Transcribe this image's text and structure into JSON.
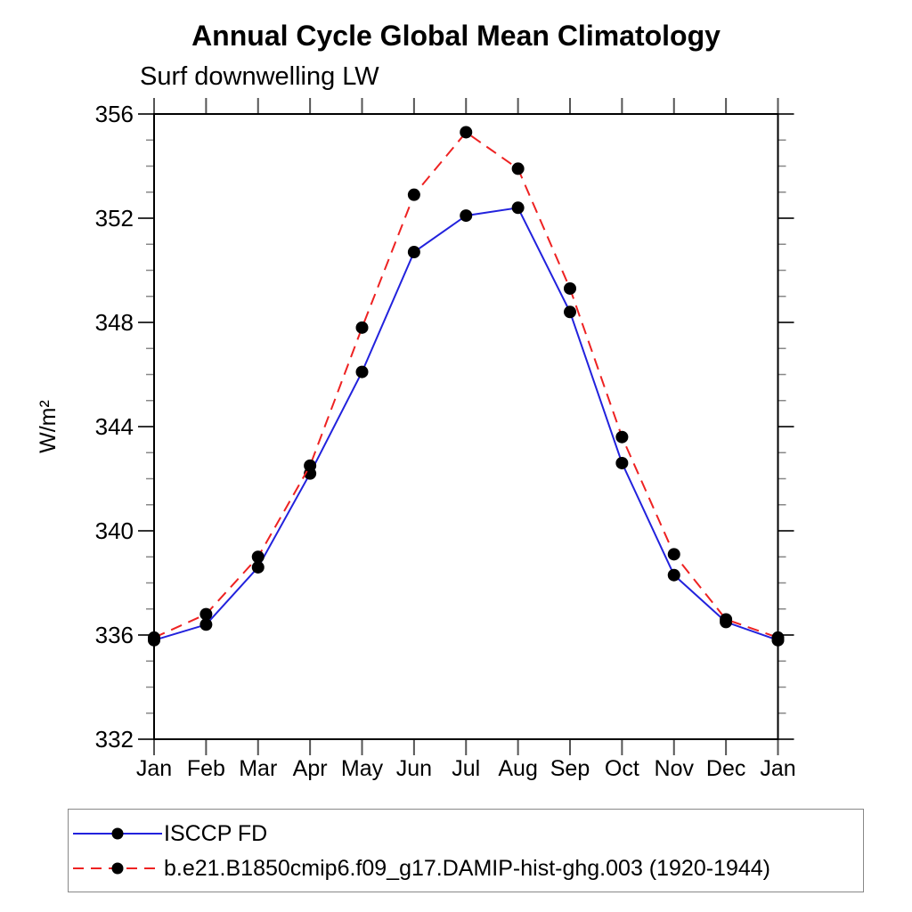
{
  "title": "Annual Cycle Global Mean Climatology",
  "chart_data": {
    "type": "line",
    "title": "Annual Cycle Global Mean Climatology",
    "subtitle": "Surf downwelling LW",
    "ylabel": "W/m²",
    "xlabel": "",
    "x_categories": [
      "Jan",
      "Feb",
      "Mar",
      "Apr",
      "May",
      "Jun",
      "Jul",
      "Aug",
      "Sep",
      "Oct",
      "Nov",
      "Dec",
      "Jan"
    ],
    "y_axis": {
      "min": 332,
      "max": 356,
      "major_step": 4,
      "minor_step": 1,
      "major_tick_labels": [
        "332",
        "336",
        "340",
        "344",
        "348",
        "352",
        "356"
      ]
    },
    "grid": "off",
    "legend_position": "bottom-left-box",
    "series": [
      {
        "name": "ISCCP FD",
        "line_style": "solid",
        "line_color": "#2222dd",
        "marker": "filled-circle",
        "marker_color": "#000000",
        "values": [
          335.8,
          336.4,
          338.6,
          342.2,
          346.1,
          350.7,
          352.1,
          352.4,
          348.4,
          342.6,
          338.3,
          336.5,
          335.8
        ]
      },
      {
        "name": "b.e21.B1850cmip6.f09_g17.DAMIP-hist-ghg.003 (1920-1944)",
        "line_style": "dashed",
        "line_color": "#ee2222",
        "marker": "filled-circle",
        "marker_color": "#000000",
        "values": [
          335.9,
          336.8,
          339.0,
          342.5,
          347.8,
          352.9,
          355.3,
          353.9,
          349.3,
          343.6,
          339.1,
          336.6,
          335.9
        ]
      }
    ]
  },
  "colors": {
    "background": "#ffffff",
    "axis_frame": "#000000",
    "major_tick": "#333333",
    "minor_tick": "#888888",
    "month_tick": "#555555",
    "legend_border": "#888888",
    "series_blue": "#2222dd",
    "series_red": "#ee2222",
    "marker_black": "#000000"
  }
}
